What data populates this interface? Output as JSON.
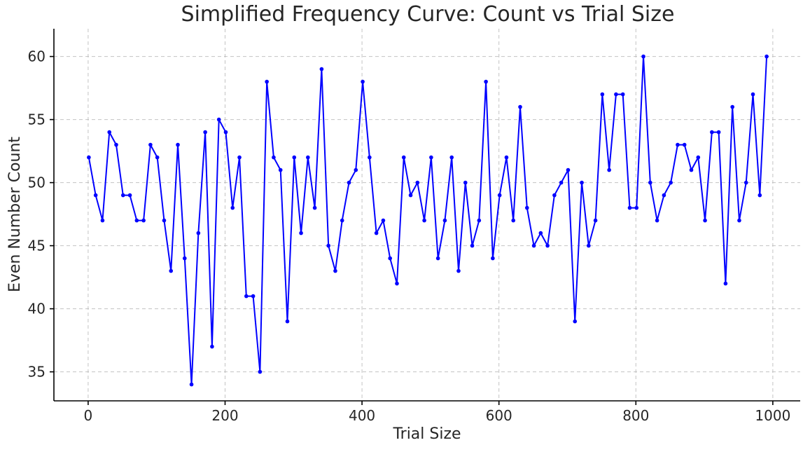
{
  "chart_data": {
    "type": "line",
    "title": "Simplified Frequency Curve: Count vs Trial Size",
    "xlabel": "Trial Size",
    "ylabel": "Even Number Count",
    "xlim": [
      -50,
      1040
    ],
    "ylim": [
      32.7,
      62.2
    ],
    "xticks": [
      0,
      200,
      400,
      600,
      800,
      1000
    ],
    "yticks": [
      35,
      40,
      45,
      50,
      55,
      60
    ],
    "grid": true,
    "line_color": "#0000ff",
    "x": [
      1,
      11,
      21,
      31,
      41,
      51,
      61,
      71,
      81,
      91,
      101,
      111,
      121,
      131,
      141,
      151,
      161,
      171,
      181,
      191,
      201,
      211,
      221,
      231,
      241,
      251,
      261,
      271,
      281,
      291,
      301,
      311,
      321,
      331,
      341,
      351,
      361,
      371,
      381,
      391,
      401,
      411,
      421,
      431,
      441,
      451,
      461,
      471,
      481,
      491,
      501,
      511,
      521,
      531,
      541,
      551,
      561,
      571,
      581,
      591,
      601,
      611,
      621,
      631,
      641,
      651,
      661,
      671,
      681,
      691,
      701,
      711,
      721,
      731,
      741,
      751,
      761,
      771,
      781,
      791,
      801,
      811,
      821,
      831,
      841,
      851,
      861,
      871,
      881,
      891,
      901,
      911,
      921,
      931,
      941,
      951,
      961,
      971,
      981,
      991
    ],
    "series": [
      {
        "values": [
          52,
          49,
          47,
          54,
          53,
          49,
          49,
          47,
          47,
          53,
          52,
          47,
          43,
          53,
          44,
          34,
          46,
          54,
          37,
          55,
          54,
          48,
          52,
          41,
          41,
          35,
          58,
          52,
          51,
          39,
          52,
          46,
          52,
          48,
          59,
          45,
          43,
          47,
          50,
          51,
          58,
          52,
          46,
          47,
          44,
          42,
          52,
          49,
          50,
          47,
          52,
          44,
          47,
          52,
          43,
          50,
          45,
          47,
          58,
          44,
          49,
          52,
          47,
          56,
          48,
          45,
          46,
          45,
          49,
          50,
          51,
          39,
          50,
          45,
          47,
          57,
          51,
          57,
          57,
          48,
          48,
          60,
          50,
          47,
          49,
          50,
          53,
          53,
          51,
          52,
          47,
          54,
          54,
          42,
          56,
          47,
          50,
          57,
          49,
          60
        ]
      }
    ]
  }
}
